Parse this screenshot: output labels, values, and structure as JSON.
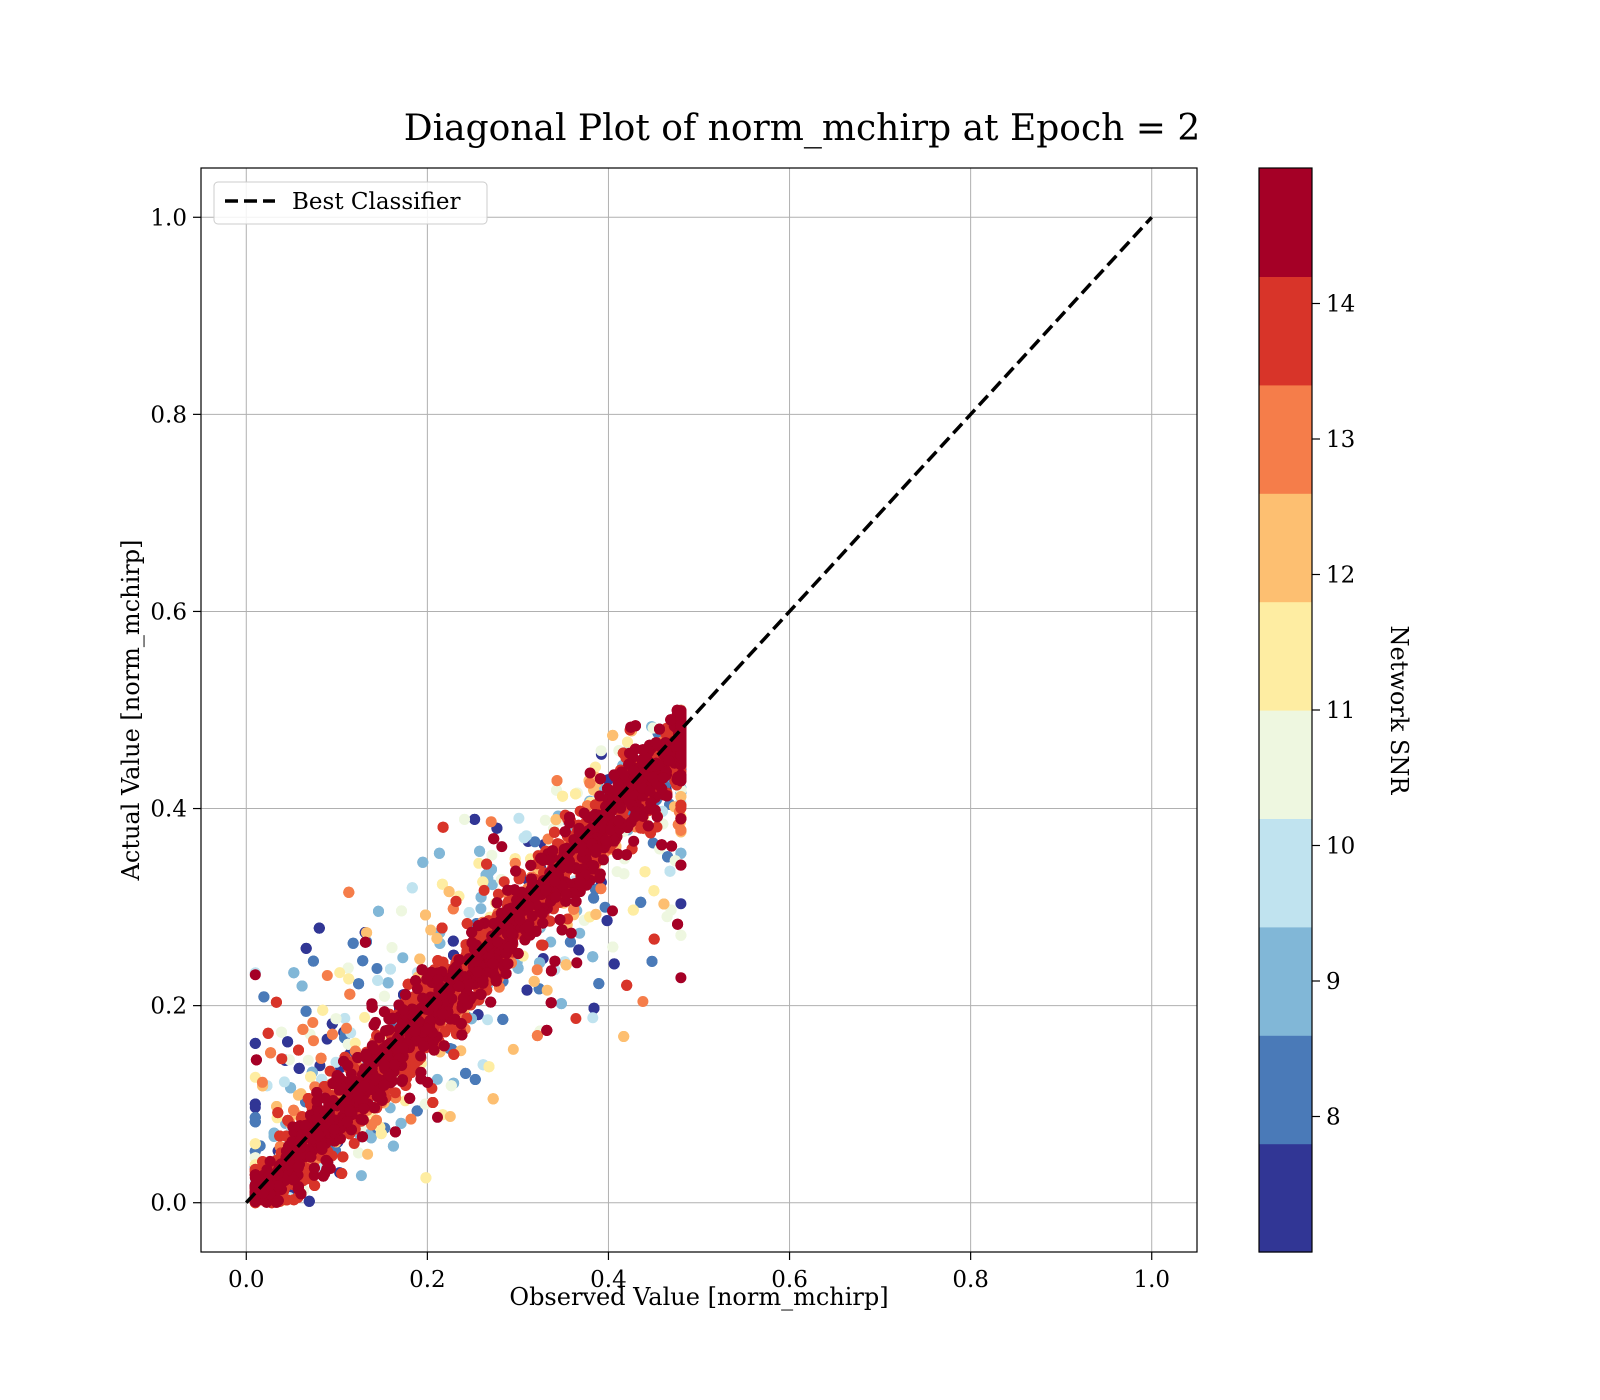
{
  "chart_data": {
    "type": "scatter",
    "title": "Diagonal Plot of norm_mchirp at Epoch = 2",
    "xlabel": "Observed Value [norm_mchirp]",
    "ylabel": "Actual Value [norm_mchirp]",
    "xlim": [
      -0.05,
      1.05
    ],
    "ylim": [
      -0.05,
      1.05
    ],
    "xticks": [
      0.0,
      0.2,
      0.4,
      0.6,
      0.8,
      1.0
    ],
    "yticks": [
      0.0,
      0.2,
      0.4,
      0.6,
      0.8,
      1.0
    ],
    "xtick_labels": [
      "0.0",
      "0.2",
      "0.4",
      "0.6",
      "0.8",
      "1.0"
    ],
    "ytick_labels": [
      "0.0",
      "0.2",
      "0.4",
      "0.6",
      "0.8",
      "1.0"
    ],
    "grid": true,
    "legend": {
      "position": "top-left",
      "entries": [
        "Best Classifier"
      ]
    },
    "reference_line": {
      "name": "Best Classifier",
      "style": "dashed",
      "color": "#000000",
      "x": [
        0.0,
        1.0
      ],
      "y": [
        0.0,
        1.0
      ]
    },
    "points_summary": {
      "observed_range": [
        0.0,
        0.48
      ],
      "actual_range": [
        0.0,
        0.5
      ],
      "note_visible": ""
    },
    "colorbar": {
      "label": "Network SNR",
      "range": [
        7.0,
        15.0
      ],
      "tick_values": [
        8,
        9,
        10,
        11,
        12,
        13,
        14
      ],
      "tick_labels": [
        "8",
        "9",
        "10",
        "11",
        "12",
        "13",
        "14"
      ],
      "colors": [
        "#313695",
        "#4a7ab8",
        "#81b7d7",
        "#c0e3ef",
        "#eef7e0",
        "#feeda2",
        "#fdbf71",
        "#f57d4a",
        "#d83429",
        "#a50026"
      ]
    }
  }
}
